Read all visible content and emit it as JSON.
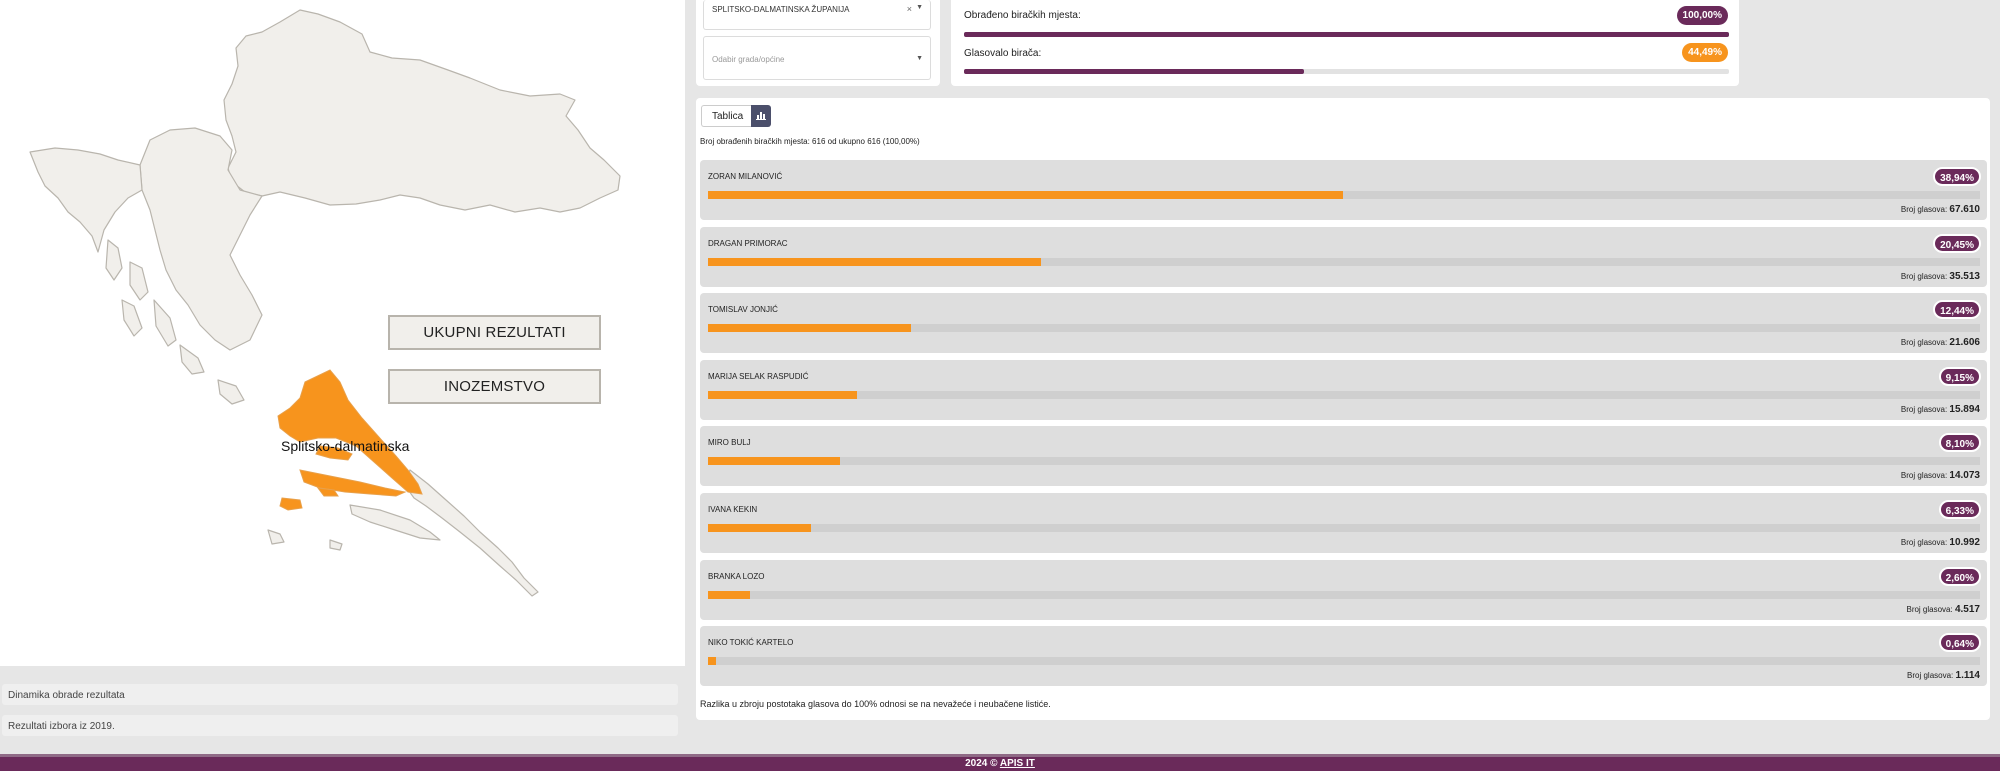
{
  "map": {
    "total_button": "UKUPNI REZULTATI",
    "abroad_button": "INOZEMSTVO",
    "region_label": "Splitsko-dalmatinska",
    "base_color": "#f1efeb",
    "highlight_color": "#f7941d"
  },
  "accordion": [
    "Dinamika obrade rezultata",
    "Rezultati izbora iz 2019."
  ],
  "filters": {
    "county_value": "SPLITSKO-DALMATINSKA ŽUPANIJA",
    "county_clear": "×",
    "city_placeholder": "Odabir grada/općine"
  },
  "stats": {
    "processed_label": "Obrađeno biračkih mjesta:",
    "processed_value": "100,00%",
    "processed_level": 1.0,
    "turnout_label": "Glasovalo birača:",
    "turnout_value": "44,49%",
    "turnout_level": 0.4449,
    "processed_color": "#6a2a5a",
    "turnout_color": "#f7941d"
  },
  "results": {
    "tab_table": "Tablica",
    "chart_tab_icon": "bar-chart-icon",
    "count_line": "Broj obrađenih biračkih mjesta: 616 od ukupno 616 (100,00%)",
    "votes_label": "Broj glasova:",
    "note": "Razlika u zbroju postotaka glasova do 100% odnosi se na nevažeće i neubačene listiće.",
    "candidates": [
      {
        "name": "ZORAN MILANOVIĆ",
        "percent": "38,94%",
        "votes": "67.610"
      },
      {
        "name": "DRAGAN PRIMORAC",
        "percent": "20,45%",
        "votes": "35.513"
      },
      {
        "name": "TOMISLAV JONJIĆ",
        "percent": "12,44%",
        "votes": "21.606"
      },
      {
        "name": "MARIJA SELAK RASPUDIĆ",
        "percent": "9,15%",
        "votes": "15.894"
      },
      {
        "name": "MIRO BULJ",
        "percent": "8,10%",
        "votes": "14.073"
      },
      {
        "name": "IVANA KEKIN",
        "percent": "6,33%",
        "votes": "10.992"
      },
      {
        "name": "BRANKA LOZO",
        "percent": "2,60%",
        "votes": "4.517"
      },
      {
        "name": "NIKO TOKIĆ KARTELO",
        "percent": "0,64%",
        "votes": "1.114"
      }
    ],
    "bar_color": "#f7941d",
    "badge_color": "#6a2a5a"
  },
  "footer": {
    "prefix": "2024 © ",
    "link": "APIS IT"
  }
}
